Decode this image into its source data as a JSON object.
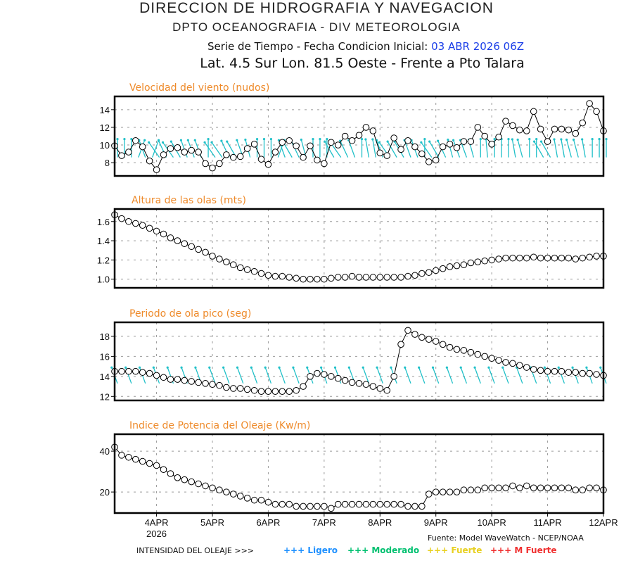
{
  "header": {
    "title": "DIRECCION DE HIDROGRAFIA Y NAVEGACION",
    "subtitle": "DPTO OCEANOGRAFIA - DIV METEOROLOGIA",
    "series_label": "Serie de Tiempo - Fecha Condicion Inicial:",
    "init_date": "03 ABR 2026 06Z",
    "location": "Lat. 4.5 Sur  Lon. 81.5 Oeste - Frente a Pto Talara"
  },
  "footer": {
    "source": "Fuente: Model WaveWatch - NCEP/NOAA",
    "intensity_label": "INTENSIDAD DEL OLEAJE >>>",
    "legend": [
      {
        "label": "+++ Ligero",
        "color": "#1e90ff"
      },
      {
        "label": "+++ Moderado",
        "color": "#00c070"
      },
      {
        "label": "+++ Fuerte",
        "color": "#e8d020"
      },
      {
        "label": "+++ M Fuerte",
        "color": "#f03030"
      }
    ]
  },
  "colors": {
    "title": "#ee8a2a",
    "arrows": "#20c0c8",
    "line": "#000000",
    "grid": "#aaaaaa"
  },
  "chart_data": [
    {
      "type": "line",
      "title": "Velocidad del viento (nudos)",
      "xlabel": "",
      "ylabel": "",
      "x_start": "3APR 06Z",
      "x_step_hours": 3,
      "x_ticks": [
        "4APR",
        "5APR",
        "6APR",
        "7APR",
        "8APR",
        "9APR",
        "10APR",
        "11APR",
        "12APR"
      ],
      "x_tick_sub": "2026",
      "ylim": [
        6.5,
        15.5
      ],
      "y_ticks": [
        8,
        10,
        12,
        14
      ],
      "grid": true,
      "has_direction_arrows": true,
      "values": [
        9.9,
        8.8,
        9.2,
        10.5,
        9.8,
        8.2,
        7.2,
        8.9,
        9.6,
        9.7,
        9.2,
        9.4,
        9.2,
        7.9,
        7.4,
        7.9,
        8.9,
        8.6,
        8.7,
        9.6,
        10.1,
        8.4,
        7.8,
        9.2,
        10.3,
        10.5,
        9.9,
        8.6,
        9.9,
        8.3,
        7.9,
        10.3,
        10.0,
        11.0,
        10.5,
        11.1,
        12.0,
        11.6,
        9.1,
        8.8,
        10.8,
        9.5,
        10.5,
        9.8,
        9.0,
        8.1,
        8.3,
        9.8,
        10.1,
        9.7,
        10.4,
        10.4,
        12.0,
        11.0,
        10.1,
        10.9,
        12.7,
        12.2,
        11.7,
        11.6,
        13.8,
        11.8,
        10.4,
        11.8,
        11.8,
        11.7,
        11.3,
        12.5,
        14.7,
        13.8,
        11.6
      ],
      "directions_deg": [
        180,
        180,
        180,
        160,
        200,
        160,
        215,
        205,
        215,
        210,
        200,
        200,
        200,
        180,
        215,
        215,
        205,
        210,
        200,
        195,
        180,
        180,
        180,
        160,
        200,
        210,
        205,
        195,
        180,
        180,
        180,
        210,
        215,
        205,
        200,
        180,
        190,
        190,
        200,
        215,
        210,
        210,
        200,
        200,
        180,
        215,
        210,
        205,
        195,
        200,
        200,
        195,
        180,
        185,
        180,
        180,
        180,
        190,
        195,
        180,
        180,
        210,
        210,
        190,
        190,
        195,
        195,
        190,
        180,
        180,
        180
      ]
    },
    {
      "type": "line",
      "title": "Altura de las olas (mts)",
      "xlabel": "",
      "ylabel": "",
      "ylim": [
        0.91,
        1.73
      ],
      "y_ticks": [
        1.0,
        1.2,
        1.4,
        1.6
      ],
      "grid": true,
      "values": [
        1.67,
        1.63,
        1.6,
        1.58,
        1.56,
        1.53,
        1.5,
        1.47,
        1.43,
        1.4,
        1.37,
        1.34,
        1.31,
        1.28,
        1.24,
        1.21,
        1.18,
        1.15,
        1.12,
        1.1,
        1.08,
        1.06,
        1.04,
        1.03,
        1.03,
        1.02,
        1.01,
        1.0,
        1.0,
        1.0,
        1.0,
        1.01,
        1.02,
        1.02,
        1.03,
        1.02,
        1.02,
        1.02,
        1.02,
        1.02,
        1.02,
        1.02,
        1.03,
        1.04,
        1.06,
        1.07,
        1.09,
        1.11,
        1.13,
        1.14,
        1.15,
        1.17,
        1.18,
        1.19,
        1.2,
        1.21,
        1.22,
        1.22,
        1.22,
        1.22,
        1.23,
        1.22,
        1.22,
        1.22,
        1.22,
        1.22,
        1.21,
        1.22,
        1.23,
        1.24,
        1.24
      ]
    },
    {
      "type": "line",
      "title": "Periodo de ola pico (seg)",
      "xlabel": "",
      "ylabel": "",
      "ylim": [
        11.6,
        19.4
      ],
      "y_ticks": [
        12,
        14,
        16,
        18
      ],
      "grid": true,
      "has_direction_arrows": true,
      "values": [
        14.5,
        14.5,
        14.5,
        14.5,
        14.4,
        14.3,
        14.1,
        13.9,
        13.7,
        13.7,
        13.6,
        13.5,
        13.4,
        13.3,
        13.2,
        13.1,
        12.9,
        12.8,
        12.8,
        12.7,
        12.6,
        12.5,
        12.5,
        12.5,
        12.5,
        12.5,
        12.6,
        13.0,
        14.0,
        14.3,
        14.2,
        14.0,
        13.8,
        13.6,
        13.4,
        13.3,
        13.2,
        13.0,
        12.8,
        12.6,
        14.0,
        17.2,
        18.6,
        18.2,
        17.9,
        17.7,
        17.5,
        17.2,
        16.9,
        16.7,
        16.6,
        16.4,
        16.2,
        16.0,
        15.8,
        15.6,
        15.4,
        15.3,
        15.1,
        14.9,
        14.7,
        14.6,
        14.5,
        14.5,
        14.5,
        14.4,
        14.4,
        14.3,
        14.3,
        14.2,
        14.1
      ],
      "directions_deg": [
        200,
        200,
        200,
        200,
        200,
        200,
        200,
        200,
        200,
        200,
        200,
        200,
        200,
        200,
        200,
        200,
        200,
        200,
        200,
        200,
        200,
        200,
        200,
        200,
        200,
        200,
        200,
        200,
        200,
        200,
        200,
        200,
        200,
        200,
        200,
        200,
        200,
        200,
        200,
        200,
        200,
        200,
        200,
        200,
        200,
        200,
        200,
        200,
        200,
        200,
        200,
        200,
        200,
        200,
        200,
        200,
        200,
        200,
        200,
        200,
        200,
        200,
        200,
        200,
        200,
        200,
        200,
        200,
        200,
        200,
        200
      ]
    },
    {
      "type": "line",
      "title": "Indice de Potencia del Oleaje (Kw/m)",
      "xlabel": "",
      "ylabel": "",
      "ylim": [
        9.7,
        48.3
      ],
      "y_ticks": [
        20,
        40
      ],
      "grid": true,
      "values": [
        42,
        38,
        37,
        36,
        35,
        34,
        33,
        31,
        29,
        27,
        26,
        25,
        24,
        23,
        22,
        21,
        20,
        19,
        18,
        17,
        16,
        16,
        15,
        14,
        14,
        14,
        13,
        13,
        13,
        13,
        13,
        12,
        14,
        14,
        14,
        14,
        14,
        14,
        14,
        14,
        14,
        14,
        13,
        13,
        13,
        19,
        20,
        20,
        20,
        20,
        21,
        21,
        21,
        22,
        22,
        22,
        22,
        23,
        22,
        23,
        22,
        22,
        22,
        22,
        22,
        22,
        21,
        21,
        22,
        22,
        21
      ]
    }
  ]
}
